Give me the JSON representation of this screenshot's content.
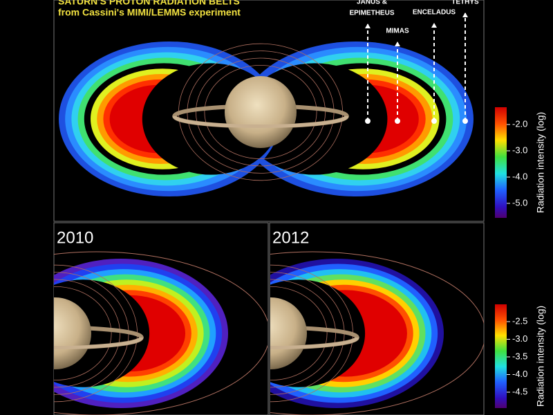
{
  "title": {
    "line1": "SATURN'S PROTON RADIATION BELTS",
    "line2": "from Cassini's MIMI/LEMMS experiment"
  },
  "moons": [
    {
      "label": [
        "JANUS &",
        "EPIMETHEUS"
      ]
    },
    {
      "label": [
        "MIMAS"
      ]
    },
    {
      "label": [
        "ENCELADUS"
      ]
    },
    {
      "label": [
        "TETHYS"
      ]
    }
  ],
  "panels": [
    "2010",
    "2012"
  ],
  "colorbars": [
    {
      "label": "Radiation intensity (log)",
      "ticks": [
        "-2.0",
        "-3.0",
        "-4.0",
        "-5.0"
      ]
    },
    {
      "label": "Radiation intensity (log)",
      "ticks": [
        "-2.5",
        "-3.0",
        "-3.5",
        "-4.0",
        "-4.5"
      ]
    }
  ]
}
